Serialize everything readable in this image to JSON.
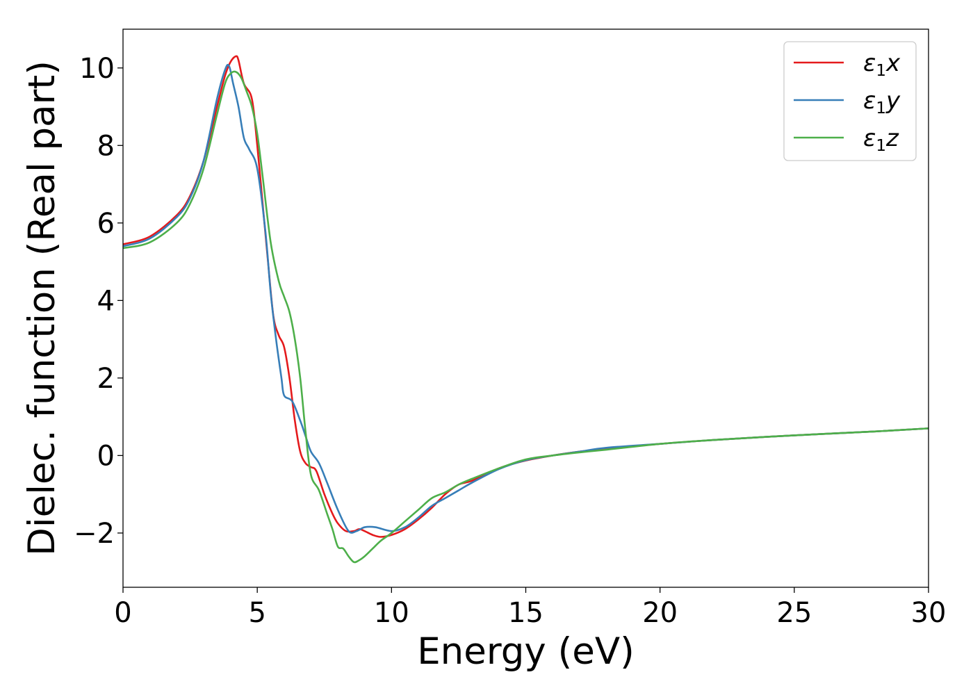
{
  "chart_data": {
    "type": "line",
    "xlabel": "Energy (eV)",
    "ylabel": "Dielec. function (Real part)",
    "xlim": [
      0,
      30
    ],
    "ylim": [
      -3.4,
      11.0
    ],
    "xticks": [
      0,
      5,
      10,
      15,
      20,
      25,
      30
    ],
    "xtick_labels": [
      "0",
      "5",
      "10",
      "15",
      "20",
      "25",
      "30"
    ],
    "yticks": [
      -2,
      0,
      2,
      4,
      6,
      8,
      10
    ],
    "ytick_labels": [
      "−2",
      "0",
      "2",
      "4",
      "6",
      "8",
      "10"
    ],
    "grid": false,
    "legend_position": "top-right",
    "series": [
      {
        "name": "ε1x",
        "legend_symbol": "ε",
        "legend_sub": "1",
        "legend_var": "x",
        "color": "#e41a1c",
        "x": [
          0,
          1,
          2,
          2.5,
          3,
          3.5,
          3.8,
          4.0,
          4.2,
          4.3,
          4.5,
          4.8,
          5.0,
          5.2,
          5.4,
          5.6,
          5.8,
          6.0,
          6.2,
          6.4,
          6.6,
          6.8,
          7.0,
          7.2,
          7.5,
          7.8,
          8.0,
          8.3,
          8.6,
          8.8,
          9.0,
          9.3,
          9.6,
          10.0,
          10.5,
          11.0,
          11.5,
          12.0,
          12.5,
          13.0,
          14.0,
          15.0,
          16.0,
          17.0,
          18.0,
          20.0,
          22.0,
          25.0,
          28.0,
          30.0
        ],
        "y": [
          5.45,
          5.65,
          6.2,
          6.7,
          7.6,
          9.0,
          9.8,
          10.15,
          10.3,
          10.2,
          9.6,
          9.2,
          8.0,
          6.5,
          5.0,
          3.6,
          3.1,
          2.8,
          2.0,
          0.9,
          0.1,
          -0.2,
          -0.3,
          -0.4,
          -1.0,
          -1.5,
          -1.75,
          -1.95,
          -1.95,
          -1.9,
          -1.95,
          -2.05,
          -2.1,
          -2.05,
          -1.9,
          -1.65,
          -1.35,
          -1.0,
          -0.75,
          -0.65,
          -0.33,
          -0.13,
          0.0,
          0.1,
          0.18,
          0.3,
          0.4,
          0.52,
          0.62,
          0.7
        ]
      },
      {
        "name": "ε1y",
        "legend_symbol": "ε",
        "legend_sub": "1",
        "legend_var": "y",
        "color": "#377eb8",
        "x": [
          0,
          1,
          2,
          2.5,
          3,
          3.5,
          3.8,
          3.95,
          4.1,
          4.3,
          4.5,
          4.7,
          5.0,
          5.3,
          5.5,
          5.7,
          5.9,
          6.0,
          6.3,
          6.6,
          6.8,
          7.0,
          7.3,
          7.6,
          8.0,
          8.4,
          8.7,
          9.0,
          9.4,
          10.0,
          10.5,
          11.0,
          11.5,
          12.0,
          12.5,
          13.0,
          14.0,
          15.0,
          16.0,
          17.0,
          18.0,
          20.0,
          22.0,
          25.0,
          28.0,
          30.0
        ],
        "y": [
          5.4,
          5.6,
          6.15,
          6.65,
          7.6,
          9.2,
          9.95,
          10.05,
          9.6,
          9.0,
          8.2,
          7.9,
          7.4,
          5.8,
          4.2,
          3.0,
          2.0,
          1.55,
          1.4,
          0.9,
          0.5,
          0.1,
          -0.2,
          -0.7,
          -1.4,
          -1.95,
          -1.95,
          -1.85,
          -1.85,
          -1.95,
          -1.85,
          -1.6,
          -1.3,
          -1.1,
          -0.9,
          -0.7,
          -0.35,
          -0.12,
          0.0,
          0.1,
          0.2,
          0.3,
          0.4,
          0.52,
          0.62,
          0.7
        ]
      },
      {
        "name": "ε1z",
        "legend_symbol": "ε",
        "legend_sub": "1",
        "legend_var": "z",
        "color": "#4daf4a",
        "x": [
          0,
          1,
          2,
          2.5,
          3,
          3.5,
          3.8,
          4.0,
          4.2,
          4.4,
          4.6,
          4.8,
          5.0,
          5.2,
          5.5,
          5.8,
          6.0,
          6.2,
          6.4,
          6.6,
          6.8,
          7.0,
          7.3,
          7.6,
          7.8,
          8.0,
          8.2,
          8.4,
          8.6,
          8.8,
          9.0,
          9.3,
          9.6,
          10.0,
          10.5,
          11.0,
          11.5,
          12.0,
          12.5,
          13.0,
          14.0,
          15.0,
          16.0,
          17.0,
          18.0,
          20.0,
          22.0,
          25.0,
          28.0,
          30.0
        ],
        "y": [
          5.35,
          5.5,
          6.0,
          6.5,
          7.4,
          8.8,
          9.6,
          9.85,
          9.9,
          9.75,
          9.4,
          9.0,
          8.3,
          7.2,
          5.5,
          4.5,
          4.1,
          3.7,
          3.0,
          2.0,
          0.6,
          -0.5,
          -0.9,
          -1.5,
          -1.9,
          -2.35,
          -2.4,
          -2.6,
          -2.75,
          -2.7,
          -2.6,
          -2.4,
          -2.2,
          -2.0,
          -1.7,
          -1.4,
          -1.1,
          -0.95,
          -0.75,
          -0.6,
          -0.33,
          -0.1,
          0.0,
          0.08,
          0.15,
          0.3,
          0.4,
          0.52,
          0.62,
          0.7
        ]
      }
    ]
  }
}
